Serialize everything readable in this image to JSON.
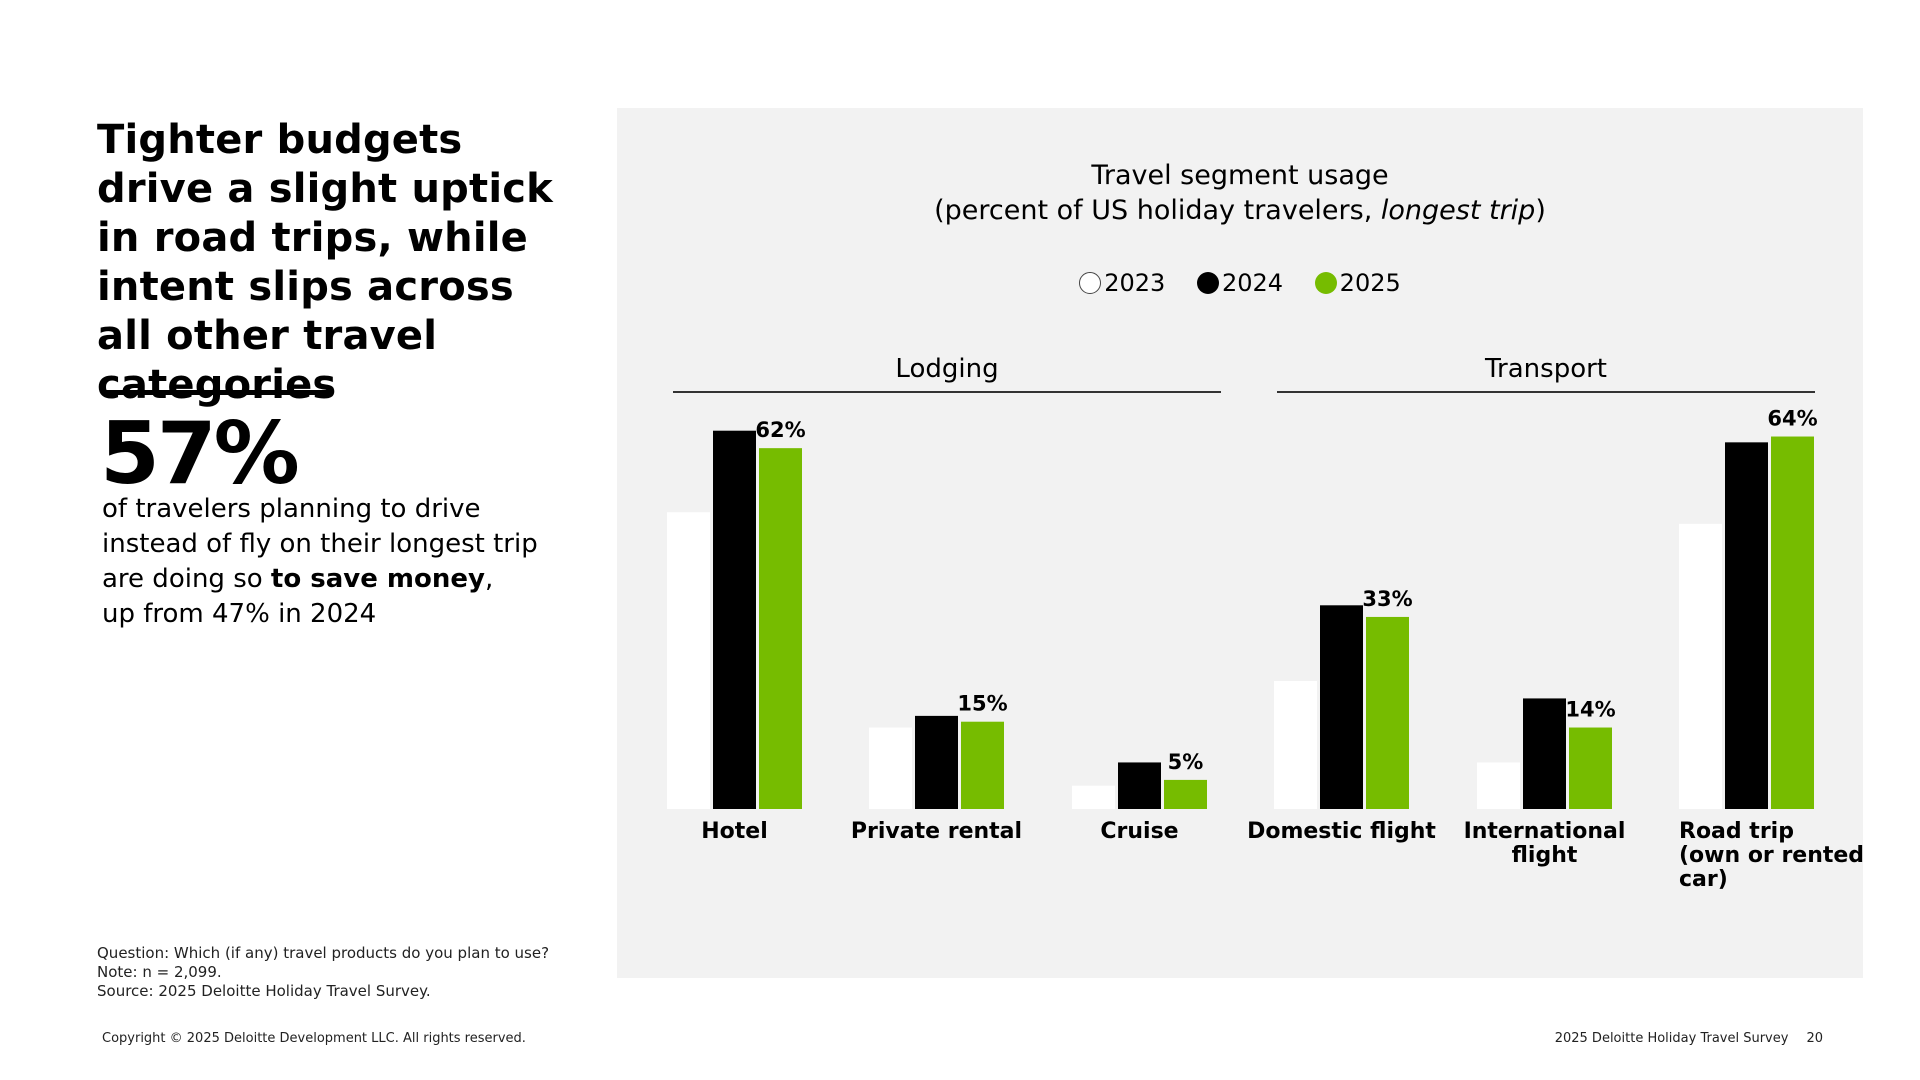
{
  "headline": "Tighter budgets drive a slight uptick in road trips, while intent slips across all other travel categories",
  "stat": {
    "value": "57%",
    "line1": "of travelers planning to drive",
    "line2": "instead of fly on their longest trip",
    "line3_pre": "are doing so ",
    "line3_bold": "to save money",
    "line3_post": ",",
    "line4": "up from 47% in 2024"
  },
  "notes": {
    "question": "Question: Which (if any) travel products do you plan to use?",
    "note": "Note: n = 2,099.",
    "source": "Source: 2025 Deloitte Holiday Travel Survey."
  },
  "footer": {
    "copyright": "Copyright © 2025 Deloitte Development LLC. All rights reserved.",
    "survey": "2025 Deloitte Holiday Travel Survey",
    "page": "20"
  },
  "colors": {
    "y2023": "#ffffff",
    "y2024": "#000000",
    "y2025": "#76bc00",
    "panel": "#f2f2f2"
  },
  "chart_data": {
    "type": "bar",
    "title_line1": "Travel segment usage",
    "title_line2_pre": "(percent of US holiday travelers, ",
    "title_line2_italic": "longest trip",
    "title_line2_post": ")",
    "legend_position": "top-center",
    "groups": [
      {
        "name": "Lodging",
        "categories": [
          0,
          1,
          2
        ]
      },
      {
        "name": "Transport",
        "categories": [
          3,
          4,
          5
        ]
      }
    ],
    "categories": [
      "Hotel",
      "Private rental",
      "Cruise",
      "Domestic flight",
      "International flight",
      "Road trip (own or rented car)"
    ],
    "category_label_lines": [
      [
        "Hotel"
      ],
      [
        "Private rental"
      ],
      [
        "Cruise"
      ],
      [
        "Domestic flight"
      ],
      [
        "International flight"
      ],
      [
        "Road trip",
        "(own or rented",
        "car)"
      ]
    ],
    "series": [
      {
        "name": "2023",
        "values": [
          51,
          14,
          4,
          22,
          8,
          49
        ]
      },
      {
        "name": "2024",
        "values": [
          65,
          16,
          8,
          35,
          19,
          63
        ]
      },
      {
        "name": "2025",
        "values": [
          62,
          15,
          5,
          33,
          14,
          64
        ]
      }
    ],
    "data_labels": [
      "62%",
      "15%",
      "5%",
      "33%",
      "14%",
      "64%"
    ],
    "ylim": [
      0,
      70
    ],
    "grid": false
  }
}
